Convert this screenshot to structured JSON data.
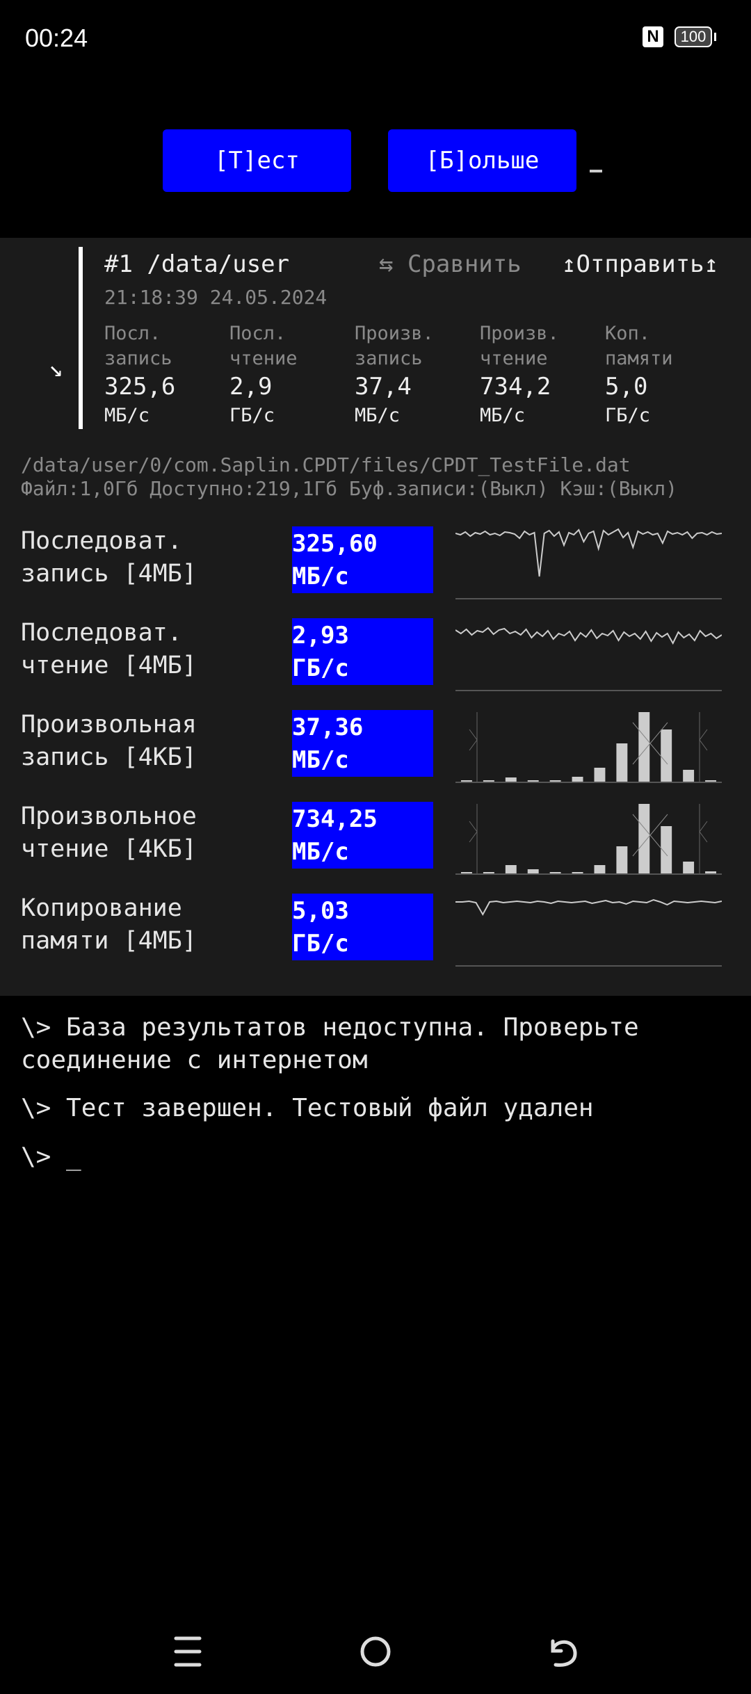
{
  "status": {
    "time": "00:24",
    "battery": "100",
    "nfc_icon": "nfc-icon"
  },
  "toolbar": {
    "test_label": "[Т]ест",
    "more_label": "[Б]ольше",
    "cursor": "_"
  },
  "result": {
    "title": "#1 /data/user",
    "compare_label": "⇆ Сравнить",
    "send_label": "↥Отправить↥",
    "date": "21:18:39 24.05.2024",
    "expand_arrow": "↘",
    "columns": [
      {
        "h1": "Посл.",
        "h2": "запись",
        "value": "325,6",
        "unit": "МБ/с"
      },
      {
        "h1": "Посл.",
        "h2": "чтение",
        "value": "2,9",
        "unit": "ГБ/с"
      },
      {
        "h1": "Произв.",
        "h2": "запись",
        "value": "37,4",
        "unit": "МБ/с"
      },
      {
        "h1": "Произв.",
        "h2": "чтение",
        "value": "734,2",
        "unit": "МБ/с"
      },
      {
        "h1": "Коп.",
        "h2": "памяти",
        "value": "5,0",
        "unit": "ГБ/с"
      }
    ]
  },
  "file": {
    "path": "/data/user/0/com.Saplin.CPDT/files/CPDT_TestFile.dat",
    "info": "Файл:1,0Гб Доступно:219,1Гб Буф.записи:(Выкл) Кэш:(Выкл)"
  },
  "tests": [
    {
      "l1": "Последоват.",
      "l2": "запись [4МБ]",
      "value": "325,60",
      "unit": "МБ/с",
      "chart": "line"
    },
    {
      "l1": "Последоват.",
      "l2": "чтение [4МБ]",
      "value": "2,93",
      "unit": "ГБ/с",
      "chart": "line"
    },
    {
      "l1": "Произвольная",
      "l2": "запись [4КБ]",
      "value": "37,36",
      "unit": "МБ/с",
      "chart": "histogram"
    },
    {
      "l1": "Произвольное",
      "l2": "чтение [4КБ]",
      "value": "734,25",
      "unit": "МБ/с",
      "chart": "histogram"
    },
    {
      "l1": "Копирование",
      "l2": "памяти [4МБ]",
      "value": "5,03",
      "unit": "ГБ/с",
      "chart": "line"
    }
  ],
  "chart_data": [
    {
      "type": "line",
      "values": [
        0.92,
        0.9,
        0.94,
        0.88,
        0.93,
        0.91,
        0.95,
        0.9,
        0.92,
        0.89,
        0.94,
        0.93,
        0.91,
        0.85,
        0.95,
        0.9,
        0.93,
        0.3,
        0.92,
        0.96,
        0.88,
        0.94,
        0.75,
        0.93,
        0.9,
        0.97,
        0.8,
        0.92,
        0.95,
        0.7,
        0.96,
        0.9,
        0.94,
        0.98,
        0.86,
        0.93,
        0.72,
        0.95,
        0.91,
        0.94,
        0.9,
        0.92,
        0.78,
        0.95,
        0.91,
        0.93,
        0.9,
        0.94,
        0.85,
        0.92,
        0.93,
        0.9,
        0.94,
        0.91,
        0.92
      ]
    },
    {
      "type": "line",
      "values": [
        0.85,
        0.8,
        0.86,
        0.78,
        0.84,
        0.82,
        0.88,
        0.79,
        0.85,
        0.87,
        0.8,
        0.83,
        0.78,
        0.86,
        0.74,
        0.82,
        0.76,
        0.84,
        0.72,
        0.8,
        0.77,
        0.83,
        0.7,
        0.81,
        0.75,
        0.85,
        0.73,
        0.8,
        0.77,
        0.84,
        0.7,
        0.82,
        0.76,
        0.8,
        0.72,
        0.83,
        0.69,
        0.81,
        0.75,
        0.8,
        0.66,
        0.82,
        0.74,
        0.79,
        0.7,
        0.84,
        0.76,
        0.8,
        0.73,
        0.78
      ]
    },
    {
      "type": "bar",
      "values": [
        0.01,
        0.02,
        0.06,
        0.02,
        0.02,
        0.07,
        0.2,
        0.55,
        1.0,
        0.75,
        0.17,
        0.01
      ]
    },
    {
      "type": "bar",
      "values": [
        0.01,
        0.02,
        0.12,
        0.06,
        0.02,
        0.01,
        0.12,
        0.39,
        1.0,
        0.68,
        0.17,
        0.03
      ]
    },
    {
      "type": "line",
      "values": [
        0.9,
        0.9,
        0.91,
        0.89,
        0.72,
        0.9,
        0.91,
        0.89,
        0.9,
        0.91,
        0.9,
        0.89,
        0.91,
        0.9,
        0.88,
        0.91,
        0.9,
        0.89,
        0.9,
        0.91,
        0.88,
        0.9,
        0.92,
        0.89,
        0.9,
        0.87,
        0.91,
        0.9,
        0.89,
        0.93,
        0.9,
        0.86,
        0.91,
        0.9,
        0.89,
        0.9,
        0.91,
        0.9,
        0.89,
        0.91
      ]
    }
  ],
  "console": [
    "\\> База результатов недоступна. Проверьте соединение с интернетом",
    "\\> Тест завершен. Тестовый файл удален",
    "\\> _"
  ],
  "navbar": {
    "menu_icon": "menu-icon",
    "home_icon": "home-icon",
    "back_icon": "back-icon"
  }
}
